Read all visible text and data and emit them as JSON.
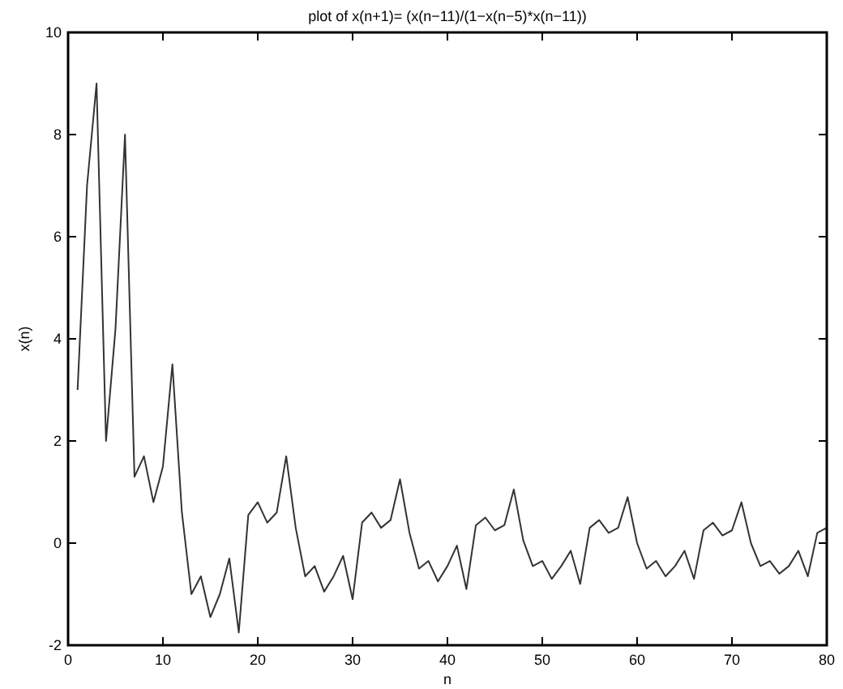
{
  "chart_data": {
    "type": "line",
    "title": "plot of x(n+1)= (x(n−11)/(1−x(n−5)*x(n−11))",
    "xlabel": "n",
    "ylabel": "x(n)",
    "x": [
      1,
      2,
      3,
      4,
      5,
      6,
      7,
      8,
      9,
      10,
      11,
      12,
      13,
      14,
      15,
      16,
      17,
      18,
      19,
      20,
      21,
      22,
      23,
      24,
      25,
      26,
      27,
      28,
      29,
      30,
      31,
      32,
      33,
      34,
      35,
      36,
      37,
      38,
      39,
      40,
      41,
      42,
      43,
      44,
      45,
      46,
      47,
      48,
      49,
      50,
      51,
      52,
      53,
      54,
      55,
      56,
      57,
      58,
      59,
      60,
      61,
      62,
      63,
      64,
      65,
      66,
      67,
      68,
      69,
      70,
      71,
      72,
      73,
      74,
      75,
      76,
      77,
      78,
      79,
      80
    ],
    "series": [
      {
        "color": "#333333",
        "values": [
          3,
          7,
          9,
          2,
          4.2,
          8,
          1.3,
          1.7,
          0.8,
          1.5,
          3.5,
          0.6,
          -1.0,
          -0.65,
          -1.45,
          -1.0,
          -0.3,
          -1.75,
          0.55,
          0.8,
          0.4,
          0.6,
          1.7,
          0.3,
          -0.65,
          -0.45,
          -0.95,
          -0.65,
          -0.25,
          -1.1,
          0.4,
          0.6,
          0.3,
          0.45,
          1.25,
          0.2,
          -0.5,
          -0.35,
          -0.75,
          -0.45,
          -0.05,
          -0.9,
          0.35,
          0.5,
          0.25,
          0.35,
          1.05,
          0.05,
          -0.45,
          -0.35,
          -0.7,
          -0.45,
          -0.15,
          -0.8,
          0.3,
          0.45,
          0.2,
          0.3,
          0.9,
          0.0,
          -0.5,
          -0.35,
          -0.65,
          -0.45,
          -0.15,
          -0.7,
          0.25,
          0.4,
          0.15,
          0.25,
          0.8,
          0.0,
          -0.45,
          -0.35,
          -0.6,
          -0.45,
          -0.15,
          -0.65,
          0.2,
          0.3
        ]
      }
    ],
    "xlim": [
      0,
      80
    ],
    "xticks": [
      0,
      10,
      20,
      30,
      40,
      50,
      60,
      70,
      80
    ],
    "ylim": [
      -2,
      10
    ],
    "yticks": [
      -2,
      0,
      2,
      4,
      6,
      8,
      10
    ],
    "grid": false,
    "marker": "none",
    "line_style": "solid"
  }
}
